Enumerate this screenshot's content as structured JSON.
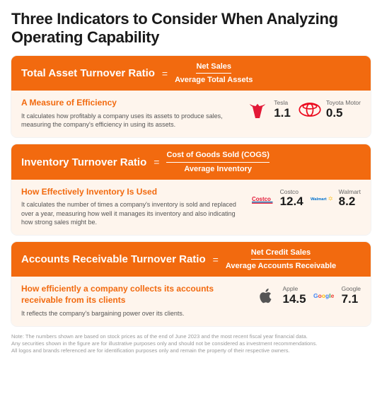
{
  "title": "Three Indicators to Consider When Analyzing Operating Capability",
  "colors": {
    "accent": "#f26a0f",
    "body_bg": "#fef5ed",
    "text": "#1a1a1a",
    "muted": "#555555",
    "note": "#9a9a9a"
  },
  "cards": [
    {
      "name": "Total Asset Turnover Ratio",
      "numerator": "Net Sales",
      "denominator": "Average Total Assets",
      "heading": "A Measure of Efficiency",
      "text": "It calculates how profitably a company uses its assets to produce sales, measuring the company's efficiency in using its assets.",
      "companies": [
        {
          "label": "Tesla",
          "value": "1.1",
          "logo": "tesla"
        },
        {
          "label": "Toyota Motor",
          "value": "0.5",
          "logo": "toyota"
        }
      ]
    },
    {
      "name": "Inventory Turnover Ratio",
      "numerator": "Cost of Goods Sold (COGS)",
      "denominator": "Average Inventory",
      "heading": "How Effectively Inventory Is Used",
      "text": "It calculates the number of times a company's inventory is sold and replaced over a year, measuring how well it manages its inventory and also indicating how strong sales might be.",
      "companies": [
        {
          "label": "Costco",
          "value": "12.4",
          "logo": "costco"
        },
        {
          "label": "Walmart",
          "value": "8.2",
          "logo": "walmart"
        }
      ]
    },
    {
      "name": "Accounts Receivable Turnover Ratio",
      "numerator": "Net Credit Sales",
      "denominator": "Average Accounts Receivable",
      "heading": "How efficiently a company collects its accounts receivable from its clients",
      "text": "It reflects the company's bargaining power over its clients.",
      "companies": [
        {
          "label": "Apple",
          "value": "14.5",
          "logo": "apple"
        },
        {
          "label": "Google",
          "value": "7.1",
          "logo": "google"
        }
      ]
    }
  ],
  "note_lines": [
    "Note: The numbers shown are based on stock prices as of the end of June 2023 and the most recent fiscal year financial data.",
    "Any securities shown in the figure are for illustrative purposes only and should not be considered as investment recommendations.",
    "All logos and brands referenced are for identification purposes only and remain the property of their respective owners."
  ]
}
